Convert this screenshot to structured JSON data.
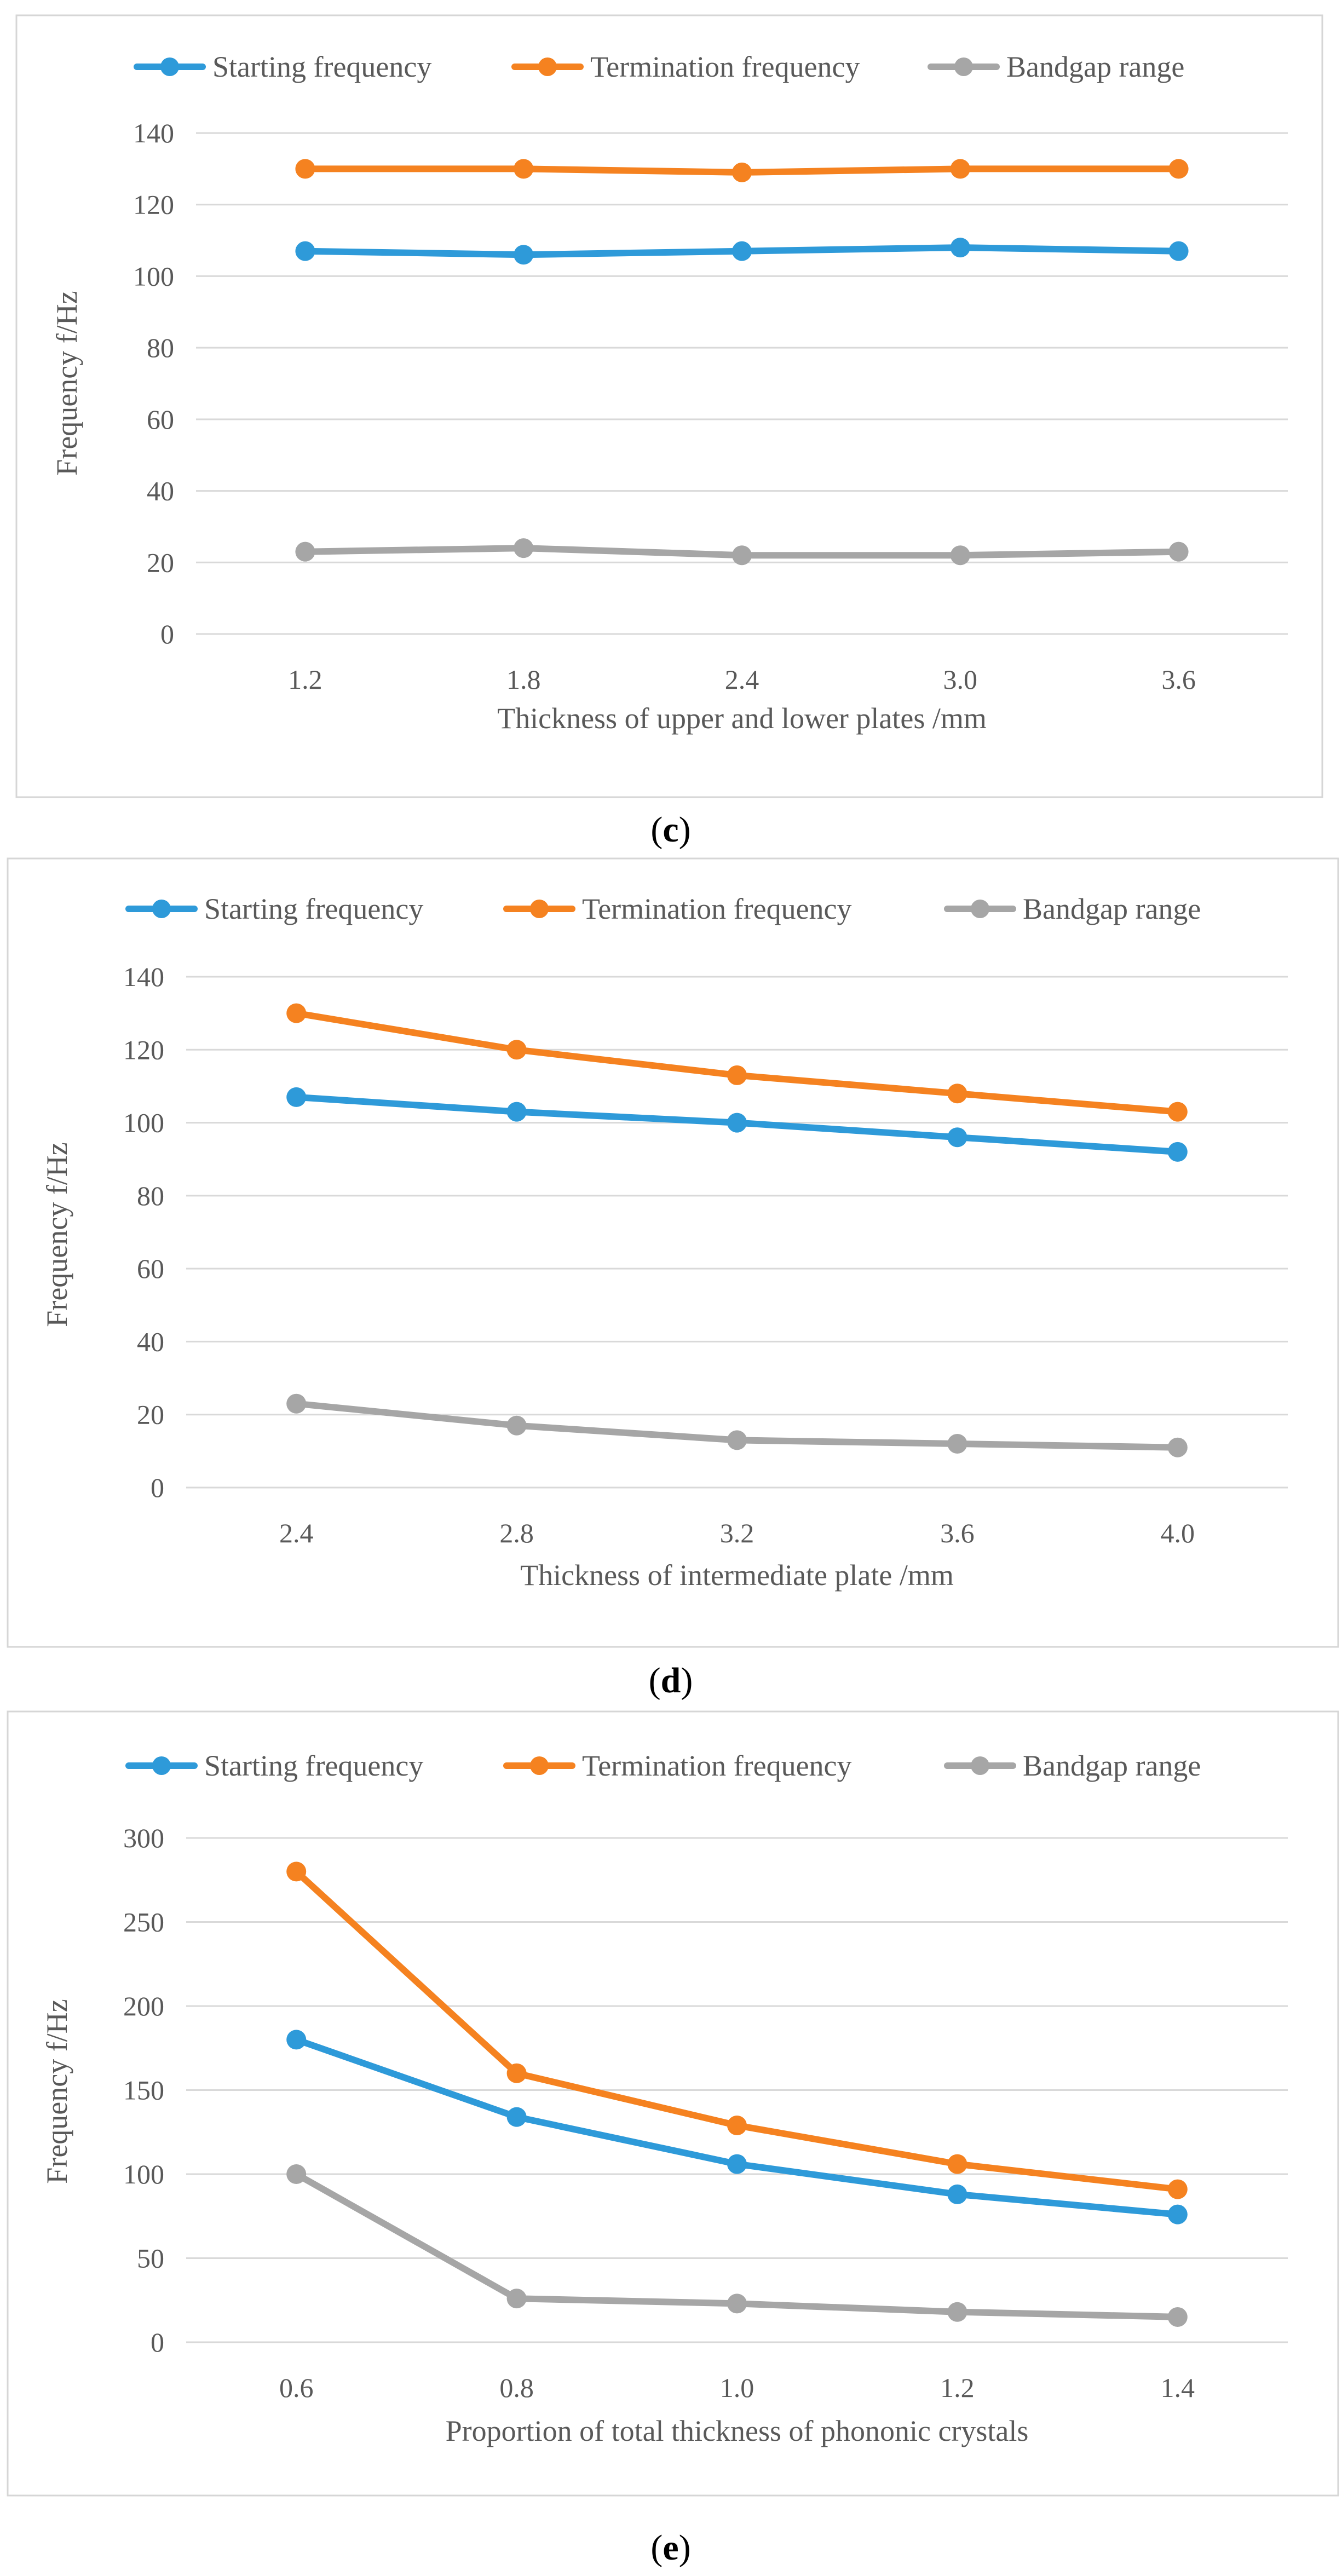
{
  "colors": {
    "starting": "#2E9AD9",
    "termination": "#F58220",
    "bandgap": "#A6A6A6"
  },
  "chart_data": [
    {
      "type": "line",
      "caption_letter": "c",
      "xlabel": "Thickness  of upper and lower plates /mm",
      "ylabel": "Frequency  f/Hz",
      "categories": [
        "1.2",
        "1.8",
        "2.4",
        "3.0",
        "3.6"
      ],
      "ylim": [
        0,
        140
      ],
      "yticks": [
        0,
        20,
        40,
        60,
        80,
        100,
        120,
        140
      ],
      "grid": true,
      "legend_position": "top",
      "series": [
        {
          "name": "Starting frequency",
          "values": [
            107,
            106,
            107,
            108,
            107
          ]
        },
        {
          "name": "Termination frequency",
          "values": [
            130,
            130,
            129,
            130,
            130
          ]
        },
        {
          "name": "Bandgap range",
          "values": [
            23,
            24,
            22,
            22,
            23
          ]
        }
      ]
    },
    {
      "type": "line",
      "caption_letter": "d",
      "xlabel": "Thickness  of intermediate  plate /mm",
      "ylabel": "Frequency  f/Hz",
      "categories": [
        "2.4",
        "2.8",
        "3.2",
        "3.6",
        "4.0"
      ],
      "ylim": [
        0,
        140
      ],
      "yticks": [
        0,
        20,
        40,
        60,
        80,
        100,
        120,
        140
      ],
      "grid": true,
      "legend_position": "top",
      "series": [
        {
          "name": "Starting frequency",
          "values": [
            107,
            103,
            100,
            96,
            92
          ]
        },
        {
          "name": "Termination frequency",
          "values": [
            130,
            120,
            113,
            108,
            103
          ]
        },
        {
          "name": "Bandgap range",
          "values": [
            23,
            17,
            13,
            12,
            11
          ]
        }
      ]
    },
    {
      "type": "line",
      "caption_letter": "e",
      "xlabel": "Proportion of total thickness of phononic crystals",
      "ylabel": "Frequency  f/Hz",
      "categories": [
        "0.6",
        "0.8",
        "1.0",
        "1.2",
        "1.4"
      ],
      "ylim": [
        0,
        300
      ],
      "yticks": [
        0,
        50,
        100,
        150,
        200,
        250,
        300
      ],
      "grid": true,
      "legend_position": "top",
      "series": [
        {
          "name": "Starting frequency",
          "values": [
            180,
            134,
            106,
            88,
            76
          ]
        },
        {
          "name": "Termination frequency",
          "values": [
            280,
            160,
            129,
            106,
            91
          ]
        },
        {
          "name": "Bandgap range",
          "values": [
            100,
            26,
            23,
            18,
            15
          ]
        }
      ]
    }
  ]
}
